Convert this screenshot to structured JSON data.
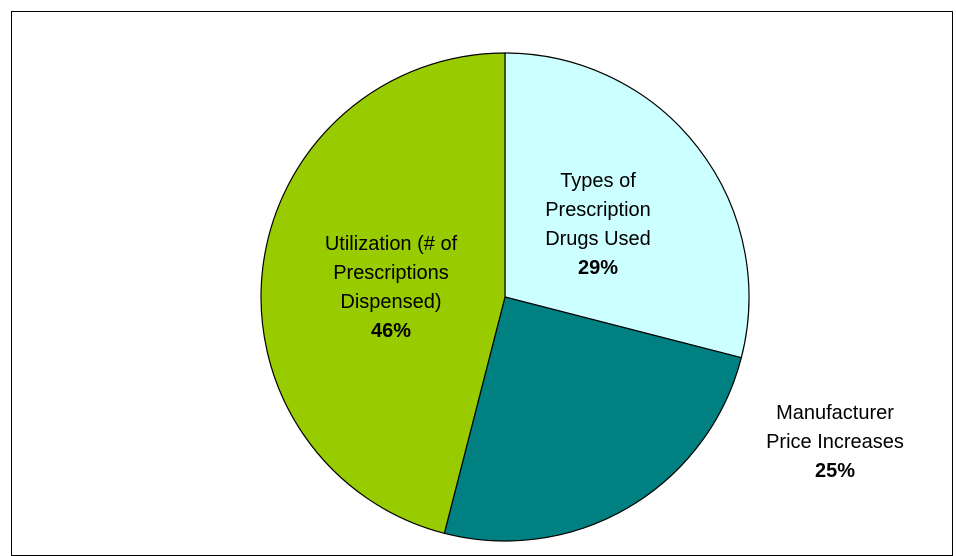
{
  "chart_data": {
    "type": "pie",
    "title": "",
    "slices": [
      {
        "label_lines": [
          "Types of",
          "Prescription",
          "Drugs Used"
        ],
        "value": 29,
        "value_label": "29%",
        "color": "#ccffff"
      },
      {
        "label_lines": [
          "Manufacturer",
          "Price Increases"
        ],
        "value": 25,
        "value_label": "25%",
        "color": "#008080"
      },
      {
        "label_lines": [
          "Utilization (# of",
          "Prescriptions",
          "Dispensed)"
        ],
        "value": 46,
        "value_label": "46%",
        "color": "#99cc00"
      }
    ],
    "start_angle_deg": 0,
    "direction": "clockwise",
    "slice_border_color": "#000000",
    "legend": "none"
  }
}
